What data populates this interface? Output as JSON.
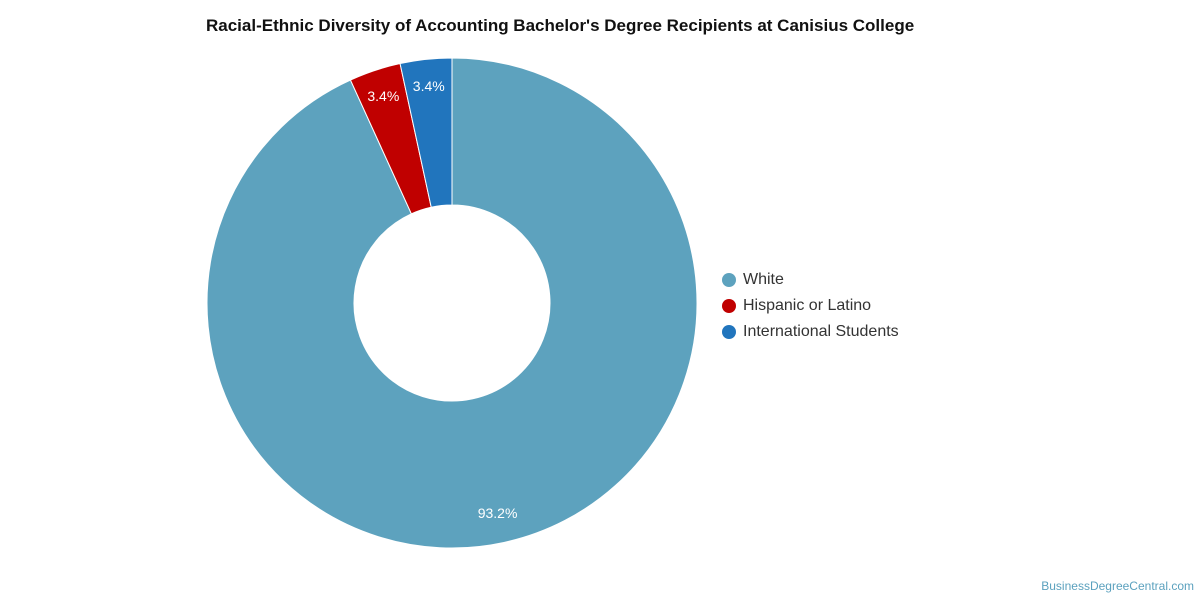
{
  "chart_data": {
    "type": "pie",
    "title": "Racial-Ethnic Diversity of Accounting Bachelor's Degree Recipients at Canisius College",
    "categories": [
      "White",
      "Hispanic or Latino",
      "International Students"
    ],
    "values": [
      93.2,
      3.4,
      3.4
    ],
    "value_labels": [
      "93.2%",
      "3.4%",
      "3.4%"
    ],
    "colors": [
      "#5da2be",
      "#c00000",
      "#2175bd"
    ],
    "donut": true,
    "legend_position": "right"
  },
  "watermark": "BusinessDegreeCentral.com"
}
